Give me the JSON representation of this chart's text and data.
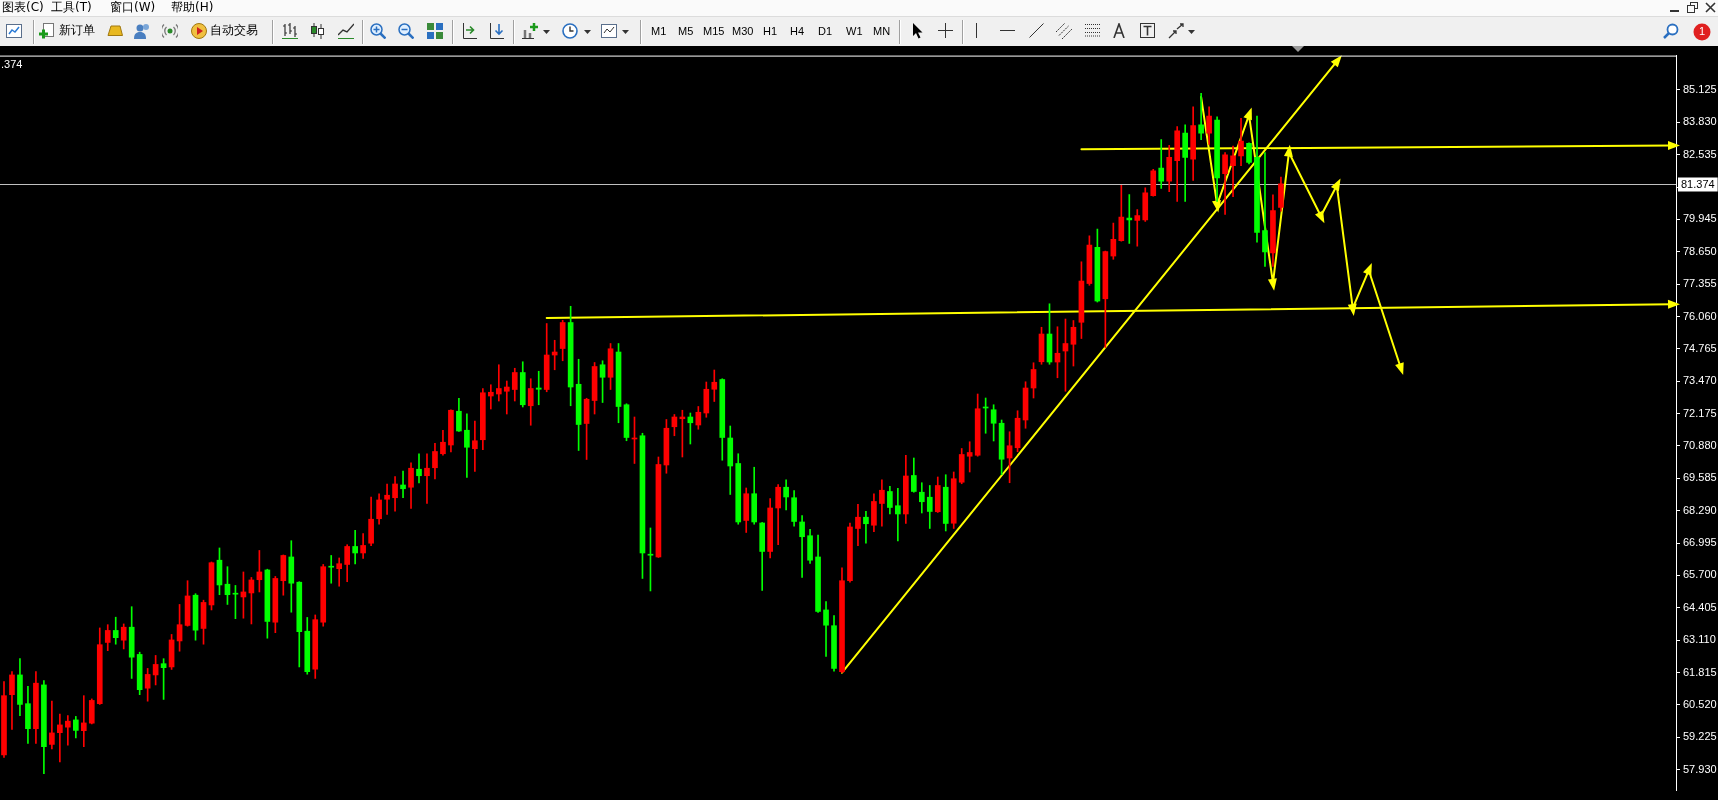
{
  "chart_data": {
    "type": "candlestick",
    "title": ".374",
    "categories": [
      null,
      null,
      null,
      null,
      null,
      null,
      null,
      null,
      null,
      null,
      null,
      null,
      null,
      null,
      null,
      null,
      null,
      null,
      null,
      null,
      null,
      null,
      null,
      null,
      null,
      null,
      null,
      null,
      null,
      null,
      null,
      null,
      null,
      null,
      null,
      null,
      null,
      null,
      null,
      null,
      null,
      null,
      null,
      null,
      null,
      null,
      null,
      null,
      null,
      null,
      null,
      null,
      null,
      null,
      null,
      null,
      null,
      null,
      null,
      null,
      null,
      null,
      null,
      null,
      null,
      null,
      null,
      null,
      null,
      null,
      null,
      null,
      null,
      null,
      null,
      null,
      null,
      null,
      null,
      null,
      null,
      null,
      null,
      null,
      null,
      null,
      null,
      null,
      null,
      null,
      null,
      null,
      null,
      null,
      null,
      null,
      null,
      null,
      null,
      null,
      null,
      null,
      null,
      null,
      null,
      null,
      null,
      null,
      null,
      null,
      null,
      null,
      null,
      null,
      null,
      null,
      null,
      null,
      null,
      null,
      null,
      null,
      null,
      null,
      null,
      null,
      null,
      null,
      null,
      null,
      null,
      null,
      null,
      null,
      null,
      null,
      null,
      null,
      null,
      null,
      null,
      null,
      null,
      null,
      null,
      null,
      null,
      null,
      null,
      null,
      null,
      null,
      null,
      null,
      null,
      null,
      null,
      null,
      null,
      null,
      null,
      null,
      null,
      null,
      null,
      null,
      null,
      null,
      null,
      null,
      null,
      null,
      null,
      null,
      null,
      null,
      null,
      null,
      null,
      null,
      null,
      null,
      null,
      null,
      null,
      null,
      null,
      null,
      null,
      null,
      null,
      null,
      null,
      null,
      null,
      null,
      null,
      null,
      null,
      null,
      null,
      null,
      null,
      null,
      null,
      null,
      null,
      null,
      null,
      null
    ],
    "ohlc": [
      [
        58.52,
        61.45,
        58.42,
        60.89
      ],
      [
        60.93,
        61.85,
        59.54,
        61.72
      ],
      [
        61.72,
        62.37,
        60.09,
        60.54
      ],
      [
        60.57,
        61.26,
        58.98,
        59.57
      ],
      [
        59.57,
        61.85,
        58.98,
        61.39
      ],
      [
        61.32,
        61.49,
        57.77,
        58.85
      ],
      [
        58.94,
        60.67,
        58.76,
        59.4
      ],
      [
        59.41,
        60.15,
        58.24,
        59.72
      ],
      [
        59.63,
        60.09,
        58.91,
        59.87
      ],
      [
        59.92,
        60.06,
        59.2,
        59.5
      ],
      [
        59.49,
        60.89,
        58.85,
        59.8
      ],
      [
        59.79,
        60.76,
        59.76,
        60.7
      ],
      [
        60.57,
        63.6,
        60.54,
        62.93
      ],
      [
        63.02,
        63.73,
        62.69,
        63.5
      ],
      [
        63.5,
        64.03,
        62.95,
        63.21
      ],
      [
        63.11,
        63.76,
        62.76,
        63.63
      ],
      [
        63.63,
        64.45,
        61.58,
        62.43
      ],
      [
        62.54,
        62.63,
        60.93,
        61.13
      ],
      [
        61.19,
        61.98,
        60.67,
        61.74
      ],
      [
        61.72,
        62.5,
        61.32,
        62.14
      ],
      [
        62.17,
        62.37,
        60.74,
        62.01
      ],
      [
        62.04,
        63.34,
        61.94,
        63.12
      ],
      [
        63.08,
        64.54,
        62.67,
        63.73
      ],
      [
        63.7,
        65.49,
        63.67,
        64.88
      ],
      [
        64.91,
        64.97,
        63.11,
        63.51
      ],
      [
        63.58,
        64.71,
        62.95,
        64.62
      ],
      [
        64.52,
        66.24,
        64.32,
        66.21
      ],
      [
        66.31,
        66.8,
        64.93,
        65.32
      ],
      [
        65.35,
        66.05,
        64.54,
        64.93
      ],
      [
        64.98,
        65.3,
        63.97,
        64.95
      ],
      [
        64.84,
        65.84,
        63.99,
        65.04
      ],
      [
        65.0,
        65.62,
        63.76,
        65.52
      ],
      [
        65.53,
        66.7,
        65.04,
        65.84
      ],
      [
        65.92,
        65.95,
        63.19,
        63.86
      ],
      [
        63.83,
        65.66,
        63.41,
        65.58
      ],
      [
        65.49,
        66.52,
        64.91,
        66.5
      ],
      [
        66.44,
        67.09,
        64.23,
        65.39
      ],
      [
        65.43,
        65.45,
        62.04,
        63.45
      ],
      [
        63.47,
        64.02,
        61.75,
        61.85
      ],
      [
        61.95,
        64.12,
        61.58,
        63.93
      ],
      [
        63.83,
        66.14,
        63.67,
        66.05
      ],
      [
        66.05,
        66.5,
        65.39,
        66.03
      ],
      [
        65.97,
        66.4,
        65.27,
        66.17
      ],
      [
        66.14,
        66.93,
        65.45,
        66.86
      ],
      [
        66.86,
        67.51,
        66.16,
        66.6
      ],
      [
        66.6,
        67.38,
        66.38,
        66.9
      ],
      [
        66.99,
        68.84,
        66.89,
        67.95
      ],
      [
        67.97,
        68.97,
        67.75,
        68.72
      ],
      [
        68.75,
        69.36,
        68.14,
        68.91
      ],
      [
        68.81,
        69.66,
        68.27,
        69.36
      ],
      [
        69.32,
        69.88,
        68.81,
        69.17
      ],
      [
        69.23,
        70.21,
        68.38,
        69.99
      ],
      [
        69.95,
        70.57,
        69.4,
        69.69
      ],
      [
        69.69,
        70.57,
        68.58,
        69.99
      ],
      [
        70.01,
        70.99,
        69.56,
        70.66
      ],
      [
        70.57,
        71.51,
        70.51,
        71.03
      ],
      [
        70.92,
        72.33,
        70.64,
        72.31
      ],
      [
        72.27,
        72.79,
        71.46,
        71.48
      ],
      [
        71.51,
        72.17,
        69.62,
        70.83
      ],
      [
        70.77,
        71.88,
        69.86,
        71.09
      ],
      [
        71.13,
        73.18,
        70.73,
        73.01
      ],
      [
        72.88,
        73.33,
        72.36,
        73.03
      ],
      [
        72.96,
        74.13,
        72.68,
        73.18
      ],
      [
        73.07,
        73.48,
        72.16,
        73.24
      ],
      [
        73.14,
        73.99,
        72.68,
        73.82
      ],
      [
        73.82,
        74.25,
        72.44,
        72.53
      ],
      [
        72.49,
        73.57,
        71.71,
        73.18
      ],
      [
        73.2,
        73.87,
        72.53,
        73.15
      ],
      [
        73.14,
        75.78,
        73.05,
        74.52
      ],
      [
        74.52,
        75.11,
        73.93,
        74.64
      ],
      [
        74.78,
        75.91,
        74.29,
        75.82
      ],
      [
        75.82,
        76.47,
        72.49,
        73.24
      ],
      [
        73.35,
        74.35,
        70.7,
        71.74
      ],
      [
        71.78,
        72.79,
        70.34,
        72.75
      ],
      [
        72.7,
        74.22,
        72.16,
        74.06
      ],
      [
        74.13,
        74.29,
        72.62,
        73.63
      ],
      [
        73.63,
        74.98,
        73.14,
        74.77
      ],
      [
        74.64,
        74.98,
        71.81,
        72.46
      ],
      [
        72.53,
        72.57,
        71.09,
        71.22
      ],
      [
        71.16,
        72.04,
        70.18,
        71.2
      ],
      [
        71.29,
        71.39,
        65.58,
        66.6
      ],
      [
        66.55,
        67.6,
        65.08,
        66.51
      ],
      [
        66.44,
        70.44,
        66.42,
        70.14
      ],
      [
        70.12,
        71.94,
        69.79,
        71.59
      ],
      [
        71.65,
        72.14,
        71.29,
        72.04
      ],
      [
        71.97,
        72.31,
        70.44,
        72.04
      ],
      [
        72.04,
        72.2,
        70.96,
        71.81
      ],
      [
        71.72,
        72.46,
        71.55,
        72.23
      ],
      [
        72.2,
        73.44,
        72.03,
        73.15
      ],
      [
        73.15,
        73.92,
        72.66,
        73.43
      ],
      [
        73.54,
        73.57,
        70.31,
        71.22
      ],
      [
        71.2,
        71.68,
        68.94,
        70.08
      ],
      [
        70.18,
        70.57,
        67.75,
        67.84
      ],
      [
        67.9,
        69.2,
        67.42,
        68.97
      ],
      [
        68.97,
        70.03,
        67.75,
        67.84
      ],
      [
        67.8,
        67.82,
        65.1,
        66.66
      ],
      [
        66.66,
        68.78,
        66.4,
        68.4
      ],
      [
        68.4,
        69.34,
        66.93,
        69.23
      ],
      [
        69.23,
        69.53,
        68.32,
        68.84
      ],
      [
        68.81,
        69.1,
        67.67,
        67.86
      ],
      [
        67.84,
        68.1,
        65.62,
        67.25
      ],
      [
        67.29,
        67.55,
        66.18,
        66.31
      ],
      [
        66.44,
        67.32,
        64.22,
        64.26
      ],
      [
        64.32,
        64.65,
        62.46,
        63.71
      ],
      [
        63.69,
        64.09,
        61.87,
        61.98
      ],
      [
        61.85,
        66.01,
        61.81,
        65.49
      ],
      [
        65.49,
        67.8,
        65.43,
        67.64
      ],
      [
        67.58,
        68.55,
        66.89,
        68.03
      ],
      [
        68.03,
        68.27,
        66.99,
        67.77
      ],
      [
        67.71,
        68.97,
        67.45,
        68.66
      ],
      [
        68.58,
        69.53,
        67.67,
        69.11
      ],
      [
        69.06,
        69.27,
        68.16,
        68.42
      ],
      [
        68.49,
        69.19,
        67.08,
        68.16
      ],
      [
        68.16,
        70.51,
        67.78,
        69.68
      ],
      [
        69.7,
        70.4,
        69.03,
        69.06
      ],
      [
        69.03,
        69.41,
        68.2,
        68.65
      ],
      [
        68.83,
        69.3,
        67.58,
        68.26
      ],
      [
        68.25,
        69.64,
        68.22,
        69.3
      ],
      [
        69.23,
        69.73,
        67.48,
        67.78
      ],
      [
        67.79,
        69.84,
        67.58,
        69.57
      ],
      [
        69.43,
        70.78,
        69.37,
        70.54
      ],
      [
        70.47,
        71.05,
        69.84,
        70.62
      ],
      [
        70.51,
        72.96,
        70.47,
        72.37
      ],
      [
        72.44,
        72.8,
        71.39,
        72.4
      ],
      [
        72.33,
        72.53,
        71.08,
        71.79
      ],
      [
        71.79,
        71.92,
        69.73,
        70.35
      ],
      [
        70.4,
        71.45,
        69.41,
        70.89
      ],
      [
        70.81,
        72.29,
        70.65,
        71.99
      ],
      [
        71.92,
        73.45,
        71.59,
        73.2
      ],
      [
        73.2,
        74.21,
        72.8,
        73.94
      ],
      [
        74.25,
        75.63,
        74.15,
        75.36
      ],
      [
        75.36,
        76.57,
        74.15,
        74.24
      ],
      [
        74.24,
        75.65,
        73.61,
        74.59
      ],
      [
        74.68,
        75.96,
        73.07,
        74.98
      ],
      [
        74.95,
        75.9,
        74.08,
        75.63
      ],
      [
        75.83,
        78.25,
        75.18,
        77.48
      ],
      [
        77.38,
        79.29,
        77.31,
        78.92
      ],
      [
        78.83,
        79.56,
        76.64,
        76.68
      ],
      [
        76.77,
        78.68,
        74.82,
        78.66
      ],
      [
        78.48,
        79.8,
        78.35,
        79.15
      ],
      [
        79.1,
        81.31,
        79.08,
        80.04
      ],
      [
        80.0,
        80.94,
        78.99,
        79.93
      ],
      [
        79.91,
        80.34,
        78.88,
        80.1
      ],
      [
        79.93,
        81.21,
        79.87,
        81.01
      ],
      [
        80.9,
        81.95,
        80.88,
        81.89
      ],
      [
        82.0,
        83.14,
        81.19,
        81.48
      ],
      [
        81.48,
        82.91,
        81.06,
        82.43
      ],
      [
        82.3,
        83.66,
        80.67,
        83.49
      ],
      [
        83.4,
        83.73,
        80.67,
        82.43
      ],
      [
        82.36,
        84.45,
        81.51,
        83.7
      ],
      [
        83.73,
        84.99,
        83.14,
        83.4
      ],
      [
        83.4,
        84.45,
        82.95,
        84.08
      ],
      [
        83.92,
        84.05,
        80.67,
        81.61
      ],
      [
        81.78,
        82.62,
        80.15,
        82.53
      ],
      [
        82.1,
        82.88,
        80.86,
        82.49
      ],
      [
        82.49,
        83.99,
        82.1,
        83.08
      ],
      [
        82.99,
        83.01,
        82.17,
        82.23
      ],
      [
        82.43,
        84.08,
        79.04,
        79.43
      ],
      [
        79.5,
        82.62,
        78.06,
        78.65
      ],
      [
        78.61,
        80.93,
        78.06,
        80.3
      ],
      [
        80.43,
        81.64,
        80.28,
        81.37
      ],
      null,
      null,
      null,
      null,
      null,
      null,
      null,
      null,
      null,
      null,
      null,
      null,
      null,
      null,
      null,
      null,
      null,
      null,
      null,
      null,
      null,
      null,
      null,
      null,
      null,
      null,
      null,
      null,
      null,
      null,
      null,
      null,
      null,
      null,
      null,
      null,
      null,
      null,
      null,
      null,
      null,
      null,
      null,
      null,
      null,
      null,
      null,
      null,
      null
    ],
    "colors": [
      "#ff0000",
      "#ff0000",
      "#00ff00",
      "#00ff00",
      "#ff0000",
      "#00ff00",
      "#ff0000",
      "#ff0000",
      "#ff0000",
      "#00ff00",
      "#ff0000",
      "#ff0000",
      "#ff0000",
      "#ff0000",
      "#00ff00",
      "#ff0000",
      "#00ff00",
      "#00ff00",
      "#ff0000",
      "#ff0000",
      "#00ff00",
      "#ff0000",
      "#ff0000",
      "#ff0000",
      "#00ff00",
      "#ff0000",
      "#ff0000",
      "#00ff00",
      "#00ff00",
      "#00ff00",
      "#ff0000",
      "#ff0000",
      "#ff0000",
      "#00ff00",
      "#ff0000",
      "#ff0000",
      "#00ff00",
      "#00ff00",
      "#00ff00",
      "#ff0000",
      "#ff0000",
      "#00ff00",
      "#ff0000",
      "#ff0000",
      "#00ff00",
      "#ff0000",
      "#ff0000",
      "#ff0000",
      "#ff0000",
      "#ff0000",
      "#00ff00",
      "#ff0000",
      "#00ff00",
      "#ff0000",
      "#ff0000",
      "#ff0000",
      "#ff0000",
      "#00ff00",
      "#00ff00",
      "#ff0000",
      "#ff0000",
      "#ff0000",
      "#ff0000",
      "#ff0000",
      "#ff0000",
      "#00ff00",
      "#ff0000",
      "#00ff00",
      "#ff0000",
      "#ff0000",
      "#ff0000",
      "#00ff00",
      "#00ff00",
      "#ff0000",
      "#ff0000",
      "#00ff00",
      "#ff0000",
      "#00ff00",
      "#00ff00",
      "#ff0000",
      "#00ff00",
      "#00ff00",
      "#ff0000",
      "#ff0000",
      "#ff0000",
      "#ff0000",
      "#00ff00",
      "#ff0000",
      "#ff0000",
      "#ff0000",
      "#00ff00",
      "#00ff00",
      "#00ff00",
      "#ff0000",
      "#00ff00",
      "#00ff00",
      "#ff0000",
      "#ff0000",
      "#00ff00",
      "#00ff00",
      "#00ff00",
      "#00ff00",
      "#00ff00",
      "#00ff00",
      "#00ff00",
      "#ff0000",
      "#ff0000",
      "#ff0000",
      "#00ff00",
      "#ff0000",
      "#ff0000",
      "#00ff00",
      "#00ff00",
      "#ff0000",
      "#00ff00",
      "#00ff00",
      "#00ff00",
      "#ff0000",
      "#00ff00",
      "#ff0000",
      "#ff0000",
      "#ff0000",
      "#ff0000",
      "#00ff00",
      "#00ff00",
      "#00ff00",
      "#ff0000",
      "#ff0000",
      "#ff0000",
      "#ff0000",
      "#ff0000",
      "#00ff00",
      "#ff0000",
      "#ff0000",
      "#ff0000",
      "#ff0000",
      "#ff0000",
      "#00ff00",
      "#ff0000",
      "#ff0000",
      "#ff0000",
      "#00ff00",
      "#ff0000",
      "#ff0000",
      "#ff0000",
      "#00ff00",
      "#ff0000",
      "#ff0000",
      "#00ff00",
      "#ff0000",
      "#00ff00",
      "#ff0000",
      "#00ff00",
      "#ff0000",
      "#ff0000",
      "#ff0000",
      "#00ff00",
      "#00ff00",
      "#00ff00",
      "#ff0000",
      "#ff0000",
      null,
      null,
      null,
      null,
      null,
      null,
      null,
      null,
      null,
      null,
      null,
      null,
      null,
      null,
      null,
      null,
      null,
      null,
      null,
      null,
      null,
      null,
      null,
      null,
      null,
      null,
      null,
      null,
      null,
      null,
      null,
      null,
      null,
      null,
      null,
      null,
      null,
      null,
      null,
      null,
      null,
      null,
      null,
      null,
      null,
      null,
      null,
      null,
      null
    ],
    "series": [
      {
        "type": "line",
        "color": "#ffff00",
        "marker": "triangle",
        "values": [
          null,
          null,
          null,
          null,
          null,
          null,
          null,
          null,
          null,
          null,
          null,
          null,
          null,
          null,
          null,
          null,
          null,
          null,
          null,
          null,
          null,
          null,
          null,
          null,
          null,
          null,
          null,
          null,
          null,
          null,
          null,
          null,
          null,
          null,
          null,
          null,
          null,
          null,
          null,
          null,
          null,
          null,
          null,
          null,
          null,
          null,
          null,
          null,
          null,
          null,
          null,
          null,
          null,
          null,
          null,
          null,
          null,
          null,
          null,
          null,
          null,
          null,
          null,
          null,
          null,
          null,
          null,
          null,
          76.0,
          null,
          null,
          null,
          null,
          null,
          null,
          null,
          null,
          null,
          null,
          null,
          null,
          null,
          null,
          null,
          null,
          null,
          null,
          null,
          null,
          null,
          null,
          null,
          null,
          null,
          null,
          null,
          null,
          null,
          null,
          null,
          null,
          null,
          null,
          null,
          null,
          null,
          null,
          null,
          null,
          null,
          null,
          null,
          null,
          null,
          null,
          null,
          null,
          null,
          null,
          null,
          null,
          null,
          null,
          null,
          null,
          null,
          null,
          null,
          null,
          null,
          null,
          null,
          null,
          null,
          null,
          null,
          null,
          null,
          null,
          null,
          null,
          null,
          null,
          null,
          null,
          null,
          null,
          null,
          null,
          null,
          null,
          null,
          null,
          null,
          null,
          null,
          null,
          null,
          null,
          null,
          null,
          null,
          null,
          null,
          null,
          null,
          null,
          null,
          null,
          null,
          null,
          null,
          null,
          null,
          null,
          null,
          null,
          null,
          null,
          null,
          null,
          null,
          null,
          null,
          null,
          null,
          null,
          null,
          null,
          null,
          null,
          null,
          null,
          null,
          null,
          null,
          null,
          null,
          null,
          null,
          null,
          null,
          null,
          null,
          null,
          null,
          null,
          null,
          null,
          76.55
        ]
      },
      {
        "type": "line",
        "color": "#ffff00",
        "marker": "triangle",
        "values": [
          null,
          null,
          null,
          null,
          null,
          null,
          null,
          null,
          null,
          null,
          null,
          null,
          null,
          null,
          null,
          null,
          null,
          null,
          null,
          null,
          null,
          null,
          null,
          null,
          null,
          null,
          null,
          null,
          null,
          null,
          null,
          null,
          null,
          null,
          null,
          null,
          null,
          null,
          null,
          null,
          null,
          null,
          null,
          null,
          null,
          null,
          null,
          null,
          null,
          null,
          null,
          null,
          null,
          null,
          null,
          null,
          null,
          null,
          null,
          null,
          null,
          null,
          null,
          null,
          null,
          null,
          null,
          null,
          null,
          null,
          null,
          null,
          null,
          null,
          null,
          null,
          null,
          null,
          null,
          null,
          null,
          null,
          null,
          null,
          null,
          null,
          null,
          null,
          null,
          null,
          null,
          null,
          null,
          null,
          null,
          null,
          null,
          null,
          null,
          null,
          null,
          null,
          null,
          null,
          null,
          null,
          null,
          null,
          null,
          null,
          null,
          null,
          null,
          null,
          null,
          null,
          null,
          null,
          null,
          null,
          null,
          null,
          null,
          null,
          null,
          null,
          null,
          null,
          null,
          null,
          null,
          null,
          null,
          null,
          null,
          82.75,
          null,
          null,
          null,
          null,
          null,
          null,
          null,
          null,
          null,
          null,
          null,
          null,
          null,
          null,
          null,
          null,
          null,
          null,
          null,
          null,
          null,
          null,
          null,
          null,
          null,
          null,
          null,
          null,
          null,
          null,
          null,
          null,
          null,
          null,
          null,
          null,
          null,
          null,
          null,
          null,
          null,
          null,
          null,
          null,
          null,
          null,
          null,
          null,
          null,
          null,
          null,
          null,
          null,
          null,
          null,
          null,
          null,
          null,
          null,
          null,
          null,
          null,
          null,
          null,
          null,
          null,
          null,
          null,
          null,
          null,
          null,
          null,
          null,
          82.9
        ]
      },
      {
        "type": "line",
        "color": "#ffff00",
        "marker": "triangle",
        "values": [
          null,
          null,
          null,
          null,
          null,
          null,
          null,
          null,
          null,
          null,
          null,
          null,
          null,
          null,
          null,
          null,
          null,
          null,
          null,
          null,
          null,
          null,
          null,
          null,
          null,
          null,
          null,
          null,
          null,
          null,
          null,
          null,
          null,
          null,
          null,
          null,
          null,
          null,
          null,
          null,
          null,
          null,
          null,
          null,
          null,
          null,
          null,
          null,
          null,
          null,
          null,
          null,
          null,
          null,
          null,
          null,
          null,
          null,
          null,
          null,
          null,
          null,
          null,
          null,
          null,
          null,
          null,
          null,
          null,
          null,
          null,
          null,
          null,
          null,
          null,
          null,
          null,
          null,
          null,
          null,
          null,
          null,
          null,
          null,
          null,
          null,
          null,
          null,
          null,
          null,
          null,
          null,
          null,
          null,
          null,
          null,
          null,
          null,
          null,
          null,
          null,
          null,
          null,
          null,
          null,
          61.81,
          null,
          null,
          null,
          null,
          null,
          null,
          null,
          null,
          null,
          null,
          null,
          null,
          null,
          null,
          null,
          null,
          null,
          null,
          null,
          null,
          null,
          null,
          null,
          null,
          null,
          null,
          null,
          null,
          null,
          null,
          null,
          null,
          null,
          null,
          null,
          null,
          null,
          null,
          null,
          null,
          null,
          null,
          null,
          null,
          null,
          null,
          null,
          null,
          null,
          null,
          null,
          null,
          null,
          null,
          null,
          null,
          null,
          null,
          null,
          null,
          null,
          86.27,
          null,
          null,
          null,
          null,
          null,
          null,
          null,
          null,
          null,
          null,
          null,
          null,
          null,
          null,
          null,
          null,
          null,
          null,
          null,
          null,
          null,
          null,
          null,
          null,
          null,
          null,
          null,
          null,
          null,
          null,
          null,
          null,
          null,
          null,
          null,
          null,
          null,
          null,
          null,
          null,
          null,
          null
        ]
      },
      {
        "type": "line",
        "color": "#ffff00",
        "marker": "triangle",
        "values": [
          null,
          null,
          null,
          null,
          null,
          null,
          null,
          null,
          null,
          null,
          null,
          null,
          null,
          null,
          null,
          null,
          null,
          null,
          null,
          null,
          null,
          null,
          null,
          null,
          null,
          null,
          null,
          null,
          null,
          null,
          null,
          null,
          null,
          null,
          null,
          null,
          null,
          null,
          null,
          null,
          null,
          null,
          null,
          null,
          null,
          null,
          null,
          null,
          null,
          null,
          null,
          null,
          null,
          null,
          null,
          null,
          null,
          null,
          null,
          null,
          null,
          null,
          null,
          null,
          null,
          null,
          null,
          null,
          null,
          null,
          null,
          null,
          null,
          null,
          null,
          null,
          null,
          null,
          null,
          null,
          null,
          null,
          null,
          null,
          null,
          null,
          null,
          null,
          null,
          null,
          null,
          null,
          null,
          null,
          null,
          null,
          null,
          null,
          null,
          null,
          null,
          null,
          null,
          null,
          null,
          null,
          null,
          null,
          null,
          null,
          null,
          null,
          null,
          null,
          null,
          null,
          null,
          null,
          null,
          null,
          null,
          null,
          null,
          null,
          null,
          null,
          null,
          null,
          null,
          null,
          null,
          null,
          null,
          null,
          null,
          null,
          null,
          null,
          null,
          null,
          null,
          null,
          null,
          null,
          null,
          null,
          null,
          null,
          null,
          null,
          84.84,
          null,
          80.54,
          null,
          null,
          null,
          84.12,
          null,
          null,
          77.41,
          null,
          82.62,
          null,
          null,
          null,
          80.08,
          null,
          81.3,
          null,
          76.4,
          null,
          77.91,
          null,
          null,
          null,
          74.02,
          null,
          null,
          null,
          null,
          null,
          null,
          null,
          null,
          null,
          null,
          null,
          null,
          null,
          null,
          null,
          null,
          null,
          null,
          null,
          null,
          null,
          null,
          null,
          null,
          null,
          null,
          null,
          null,
          null,
          null,
          null,
          null,
          null,
          null
        ]
      }
    ],
    "ylim": [
      57.1,
      86.5
    ],
    "yticks": [
      85.125,
      {
        "value": 83.83,
        "label": "83.830"
      },
      82.535,
      {
        "value": 81.24,
        "label": null
      },
      79.945,
      {
        "value": 78.65,
        "label": "78.650"
      },
      77.355,
      {
        "value": 76.06,
        "label": "76.060"
      },
      74.765,
      {
        "value": 73.47,
        "label": "73.470"
      },
      72.175,
      {
        "value": 70.88,
        "label": "70.880"
      },
      69.585,
      {
        "value": 68.29,
        "label": "68.290"
      },
      66.995,
      {
        "value": 65.7,
        "label": "65.700"
      },
      64.405,
      {
        "value": 63.11,
        "label": "63.110"
      },
      61.815,
      {
        "value": 60.52,
        "label": "60.520"
      },
      59.225,
      {
        "value": 57.93,
        "label": "57.930"
      }
    ],
    "tick_labels": "y",
    "ref_lines": [
      {
        "axis": "y",
        "value": 81.374,
        "label": "81.374",
        "color": "#c0c0c0"
      }
    ],
    "annotations": [
      "图表(C)",
      "工具(T)",
      "窗口(W)",
      "帮助(H)",
      "新订单",
      "自动交易",
      "M1",
      "M5",
      "M15",
      "M30",
      "H1",
      "H4",
      "D1",
      "W1",
      "MN",
      "1"
    ]
  }
}
